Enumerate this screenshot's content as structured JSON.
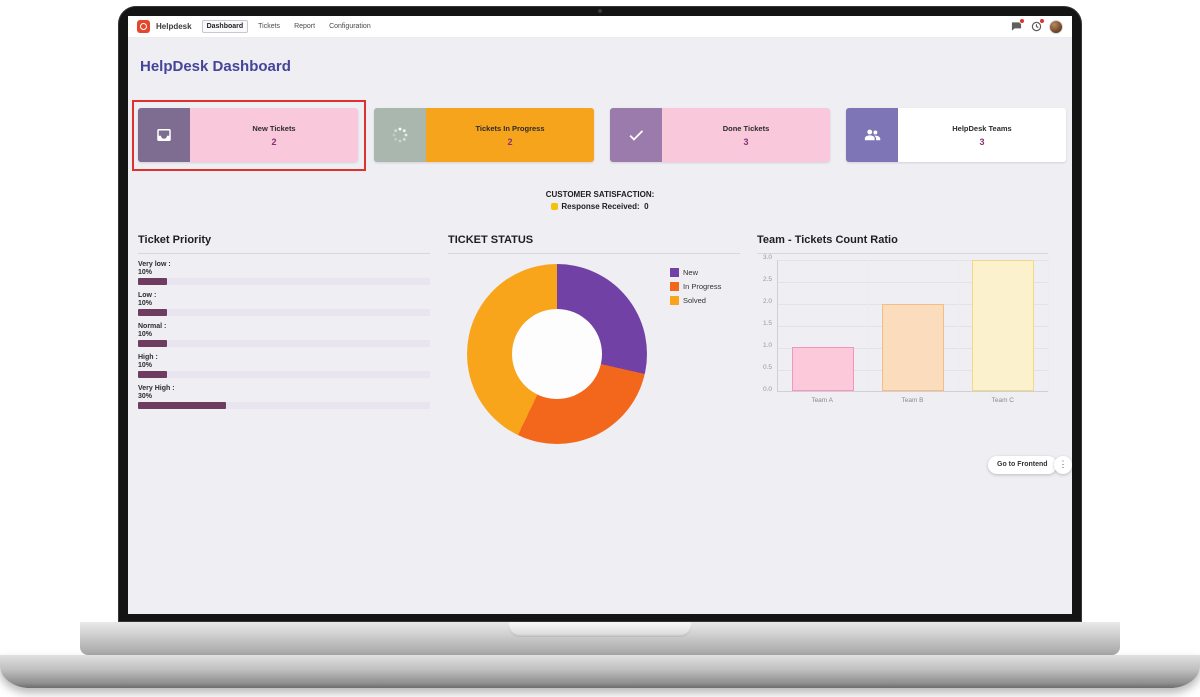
{
  "navbar": {
    "app_name": "Helpdesk",
    "menu": [
      "Dashboard",
      "Tickets",
      "Report",
      "Configuration"
    ],
    "active": "Dashboard"
  },
  "page_title": "HelpDesk Dashboard",
  "kpi_cards": [
    {
      "label": "New Tickets",
      "value": "2",
      "icon": "inbox-icon",
      "icon_bg": "#7e6d91",
      "body_color": "#f9c8da",
      "highlighted": true
    },
    {
      "label": "Tickets In Progress",
      "value": "2",
      "icon": "spinner-icon",
      "icon_bg": "#a9b7ae",
      "body_color": "#f7a41d",
      "highlighted": false
    },
    {
      "label": "Done Tickets",
      "value": "3",
      "icon": "check-icon",
      "icon_bg": "#9b7aac",
      "body_color": "#f9c8da",
      "highlighted": false
    },
    {
      "label": "HelpDesk Teams",
      "value": "3",
      "icon": "users-icon",
      "icon_bg": "#7d75b5",
      "body_color": "#ffffff",
      "highlighted": false
    }
  ],
  "satisfaction": {
    "heading": "CUSTOMER SATISFACTION:",
    "label": "Response Received:",
    "value": "0"
  },
  "chart_data": [
    {
      "type": "bar",
      "orientation": "horizontal",
      "title": "Ticket Priority",
      "categories": [
        "Very low :",
        "Low :",
        "Normal :",
        "High :",
        "Very High :"
      ],
      "values": [
        10,
        10,
        10,
        10,
        30
      ],
      "value_labels": [
        "10%",
        "10%",
        "10%",
        "10%",
        "30%"
      ],
      "max": 100,
      "track_color": "#e8e4f0",
      "fill_color": "#6e3c60"
    },
    {
      "type": "pie",
      "donut": true,
      "title": "TICKET STATUS",
      "labels": [
        "New",
        "In Progress",
        "Solved"
      ],
      "values": [
        2,
        2,
        3
      ],
      "colors": [
        "#7141a5",
        "#f2671c",
        "#f8a51b"
      ],
      "legend_position": "right"
    },
    {
      "type": "bar",
      "title": "Team - Tickets Count Ratio",
      "categories": [
        "Team A",
        "Team B",
        "Team C"
      ],
      "values": [
        1,
        2,
        3
      ],
      "ylim": [
        0,
        3
      ],
      "ytick_labels": [
        "3.0",
        "2.5",
        "2.0",
        "1.5",
        "1.0",
        "0.5",
        "0.0"
      ],
      "grid": true,
      "bar_colors": [
        "#fbc9da",
        "#fbdcbc",
        "#fcf1cd"
      ],
      "bar_borders": [
        "#f297bb",
        "#f6bc85",
        "#f0d98a"
      ]
    }
  ],
  "footer": {
    "frontend_button": "Go to Frontend",
    "kebab_icon": "⋮"
  }
}
